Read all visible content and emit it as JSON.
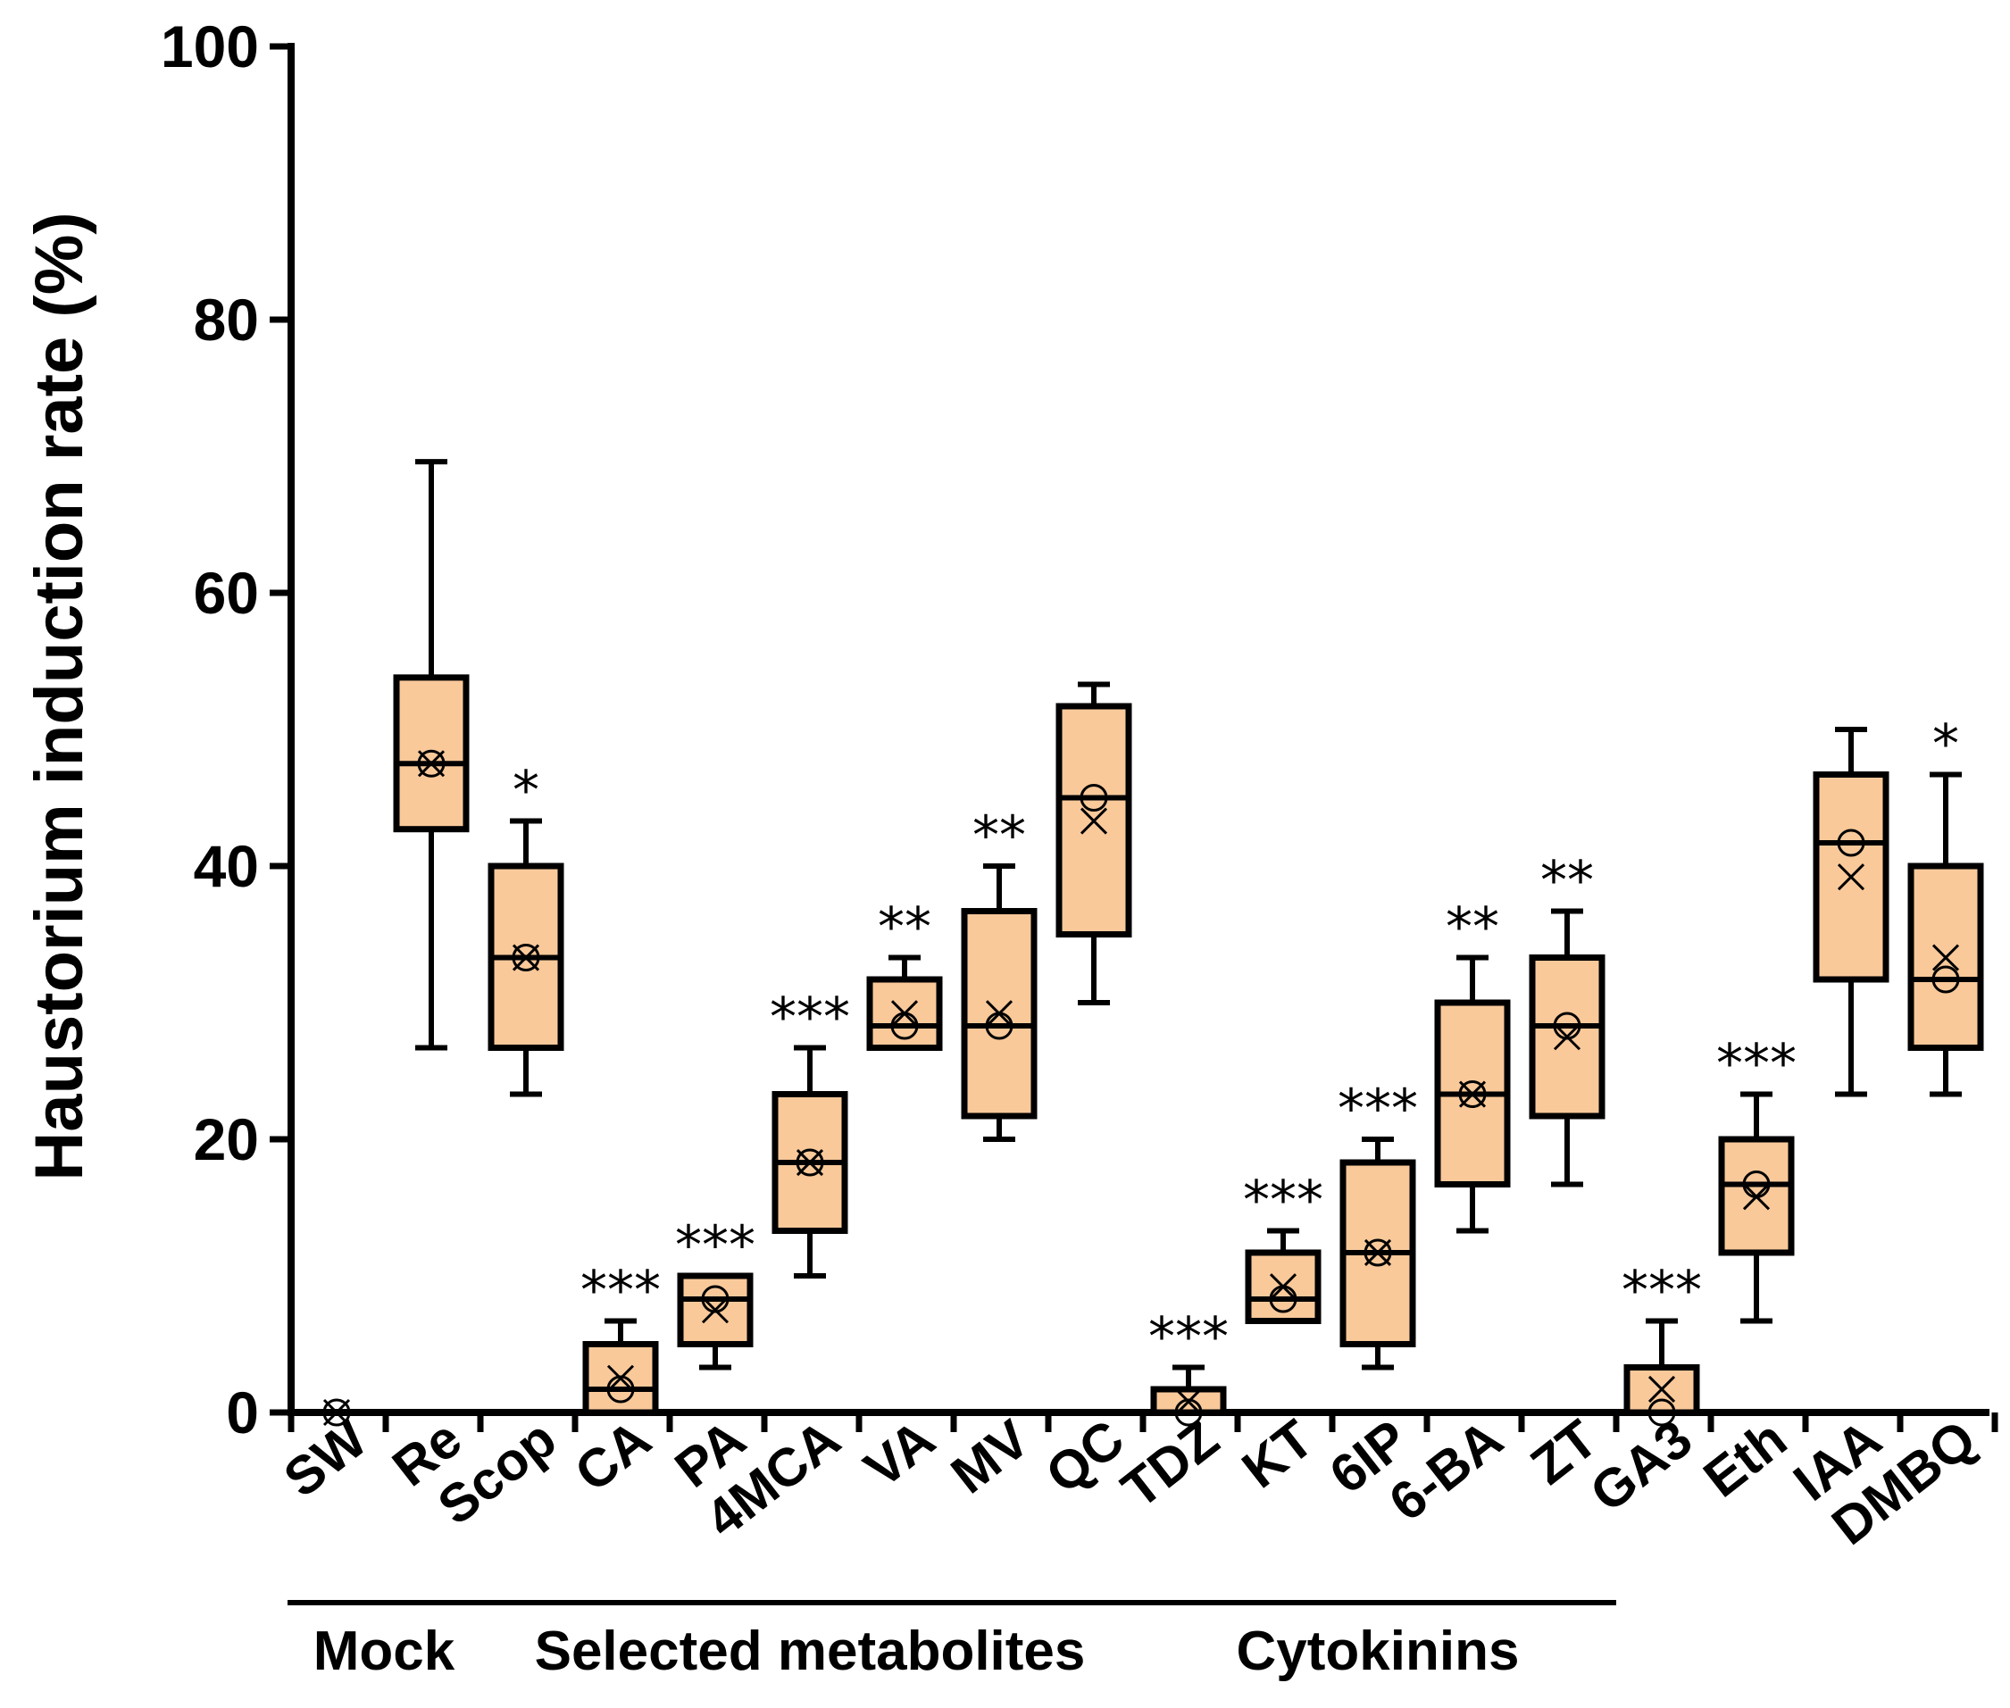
{
  "chart_data": {
    "type": "box",
    "title": "",
    "xlabel": "",
    "ylabel": "Haustorium induction rate (%)",
    "ylim": [
      0,
      100
    ],
    "yticks": [
      0,
      20,
      40,
      60,
      80,
      100
    ],
    "box_color": "#f9c99a",
    "categories": [
      "SW",
      "Re",
      "Scop",
      "CA",
      "PA",
      "4MCA",
      "VA",
      "MV",
      "QC",
      "TDZ",
      "KT",
      "6IP",
      "6-BA",
      "ZT",
      "GA3",
      "Eth",
      "IAA",
      "DMBQ"
    ],
    "boxes": [
      {
        "label": "SW",
        "min": 0,
        "q1": 0,
        "median": 0,
        "q3": 0,
        "max": 0,
        "mean": 0,
        "marker": 0,
        "sig": ""
      },
      {
        "label": "Re",
        "min": 26.7,
        "q1": 42.7,
        "median": 47.5,
        "q3": 53.8,
        "max": 69.6,
        "mean": 47.5,
        "marker": 47.5,
        "sig": ""
      },
      {
        "label": "Scop",
        "min": 23.3,
        "q1": 26.7,
        "median": 33.3,
        "q3": 40.0,
        "max": 43.3,
        "mean": 33.3,
        "marker": 33.3,
        "sig": "*"
      },
      {
        "label": "CA",
        "min": 0,
        "q1": 0,
        "median": 1.7,
        "q3": 5.0,
        "max": 6.7,
        "mean": 2.5,
        "marker": 1.7,
        "sig": "***"
      },
      {
        "label": "PA",
        "min": 3.3,
        "q1": 5.0,
        "median": 8.3,
        "q3": 10.0,
        "max": 10.0,
        "mean": 7.5,
        "marker": 8.3,
        "sig": "***"
      },
      {
        "label": "4MCA",
        "min": 10.0,
        "q1": 13.3,
        "median": 18.3,
        "q3": 23.3,
        "max": 26.7,
        "mean": 18.3,
        "marker": 18.3,
        "sig": "***"
      },
      {
        "label": "VA",
        "min": 26.7,
        "q1": 26.7,
        "median": 28.3,
        "q3": 31.7,
        "max": 33.3,
        "mean": 29.2,
        "marker": 28.3,
        "sig": "**"
      },
      {
        "label": "MV",
        "min": 20.0,
        "q1": 21.7,
        "median": 28.3,
        "q3": 36.7,
        "max": 40.0,
        "mean": 29.2,
        "marker": 28.3,
        "sig": "**"
      },
      {
        "label": "QC",
        "min": 30.0,
        "q1": 35.0,
        "median": 45.0,
        "q3": 51.7,
        "max": 53.3,
        "mean": 43.3,
        "marker": 45.0,
        "sig": ""
      },
      {
        "label": "TDZ",
        "min": 0,
        "q1": 0,
        "median": 0,
        "q3": 1.7,
        "max": 3.3,
        "mean": 0.8,
        "marker": 0,
        "sig": "***"
      },
      {
        "label": "KT",
        "min": 6.7,
        "q1": 6.7,
        "median": 8.3,
        "q3": 11.7,
        "max": 13.3,
        "mean": 9.2,
        "marker": 8.3,
        "sig": "***"
      },
      {
        "label": "6IP",
        "min": 3.3,
        "q1": 5.0,
        "median": 11.7,
        "q3": 18.3,
        "max": 20.0,
        "mean": 11.7,
        "marker": 11.7,
        "sig": "***"
      },
      {
        "label": "6-BA",
        "min": 13.3,
        "q1": 16.7,
        "median": 23.3,
        "q3": 30.0,
        "max": 33.3,
        "mean": 23.3,
        "marker": 23.3,
        "sig": "**"
      },
      {
        "label": "ZT",
        "min": 16.7,
        "q1": 21.7,
        "median": 28.3,
        "q3": 33.3,
        "max": 36.7,
        "mean": 27.5,
        "marker": 28.3,
        "sig": "**"
      },
      {
        "label": "GA3",
        "min": 0,
        "q1": 0,
        "median": 0,
        "q3": 3.3,
        "max": 6.7,
        "mean": 1.7,
        "marker": 0,
        "sig": "***"
      },
      {
        "label": "Eth",
        "min": 6.7,
        "q1": 11.7,
        "median": 16.7,
        "q3": 20.0,
        "max": 23.3,
        "mean": 15.8,
        "marker": 16.7,
        "sig": "***"
      },
      {
        "label": "IAA",
        "min": 23.3,
        "q1": 31.7,
        "median": 41.7,
        "q3": 46.7,
        "max": 50.0,
        "mean": 39.2,
        "marker": 41.7,
        "sig": ""
      },
      {
        "label": "DMBQ",
        "min": 23.3,
        "q1": 26.7,
        "median": 31.7,
        "q3": 40.0,
        "max": 46.7,
        "mean": 33.3,
        "marker": 31.7,
        "sig": "*"
      }
    ],
    "groups": [
      {
        "label": "Mock",
        "from": "SW",
        "to": "Re"
      },
      {
        "label": "Selected metabolites",
        "from": "Scop",
        "to": "QC"
      },
      {
        "label": "Cytokinins",
        "from": "TDZ",
        "to": "ZT"
      }
    ]
  }
}
